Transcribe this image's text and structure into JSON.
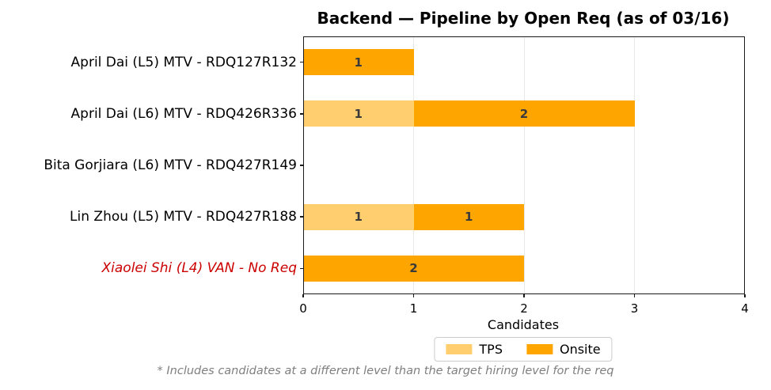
{
  "chart_data": {
    "type": "bar",
    "orientation": "horizontal",
    "stacked": true,
    "title": "Backend — Pipeline by Open Req (as of 03/16)",
    "xlabel": "Candidates",
    "xlim": [
      0,
      4
    ],
    "xticks": [
      0,
      1,
      2,
      3,
      4
    ],
    "grid": "vertical gridlines at interior x ticks",
    "legend_position": "below x-axis label, centered, horizontal",
    "categories": [
      "April Dai (L5) MTV - RDQ127R132",
      "April Dai (L6) MTV - RDQ426R336",
      "Bita Gorjiara (L6) MTV - RDQ427R149",
      "Lin Zhou (L5) MTV - RDQ427R188",
      "Xiaolei Shi (L4) VAN - No Req"
    ],
    "category_styles": [
      {
        "color": "#000000",
        "italic": false
      },
      {
        "color": "#000000",
        "italic": false
      },
      {
        "color": "#000000",
        "italic": false
      },
      {
        "color": "#000000",
        "italic": false
      },
      {
        "color": "#CC0000",
        "italic": true
      }
    ],
    "series": [
      {
        "name": "TPS",
        "color": "#FFCE6E",
        "values": [
          0,
          1,
          0,
          1,
          0
        ]
      },
      {
        "name": "Onsite",
        "color": "#FFA500",
        "values": [
          1,
          2,
          0,
          1,
          2
        ]
      }
    ],
    "bar_label_color": "#3A3A3A",
    "colors": {
      "gridline": "#E8E8E8",
      "spine": "#1A1A1A",
      "footnote": "#7F7F7F"
    },
    "footnote": "* Includes candidates at a different level than the target hiring level for the req"
  }
}
